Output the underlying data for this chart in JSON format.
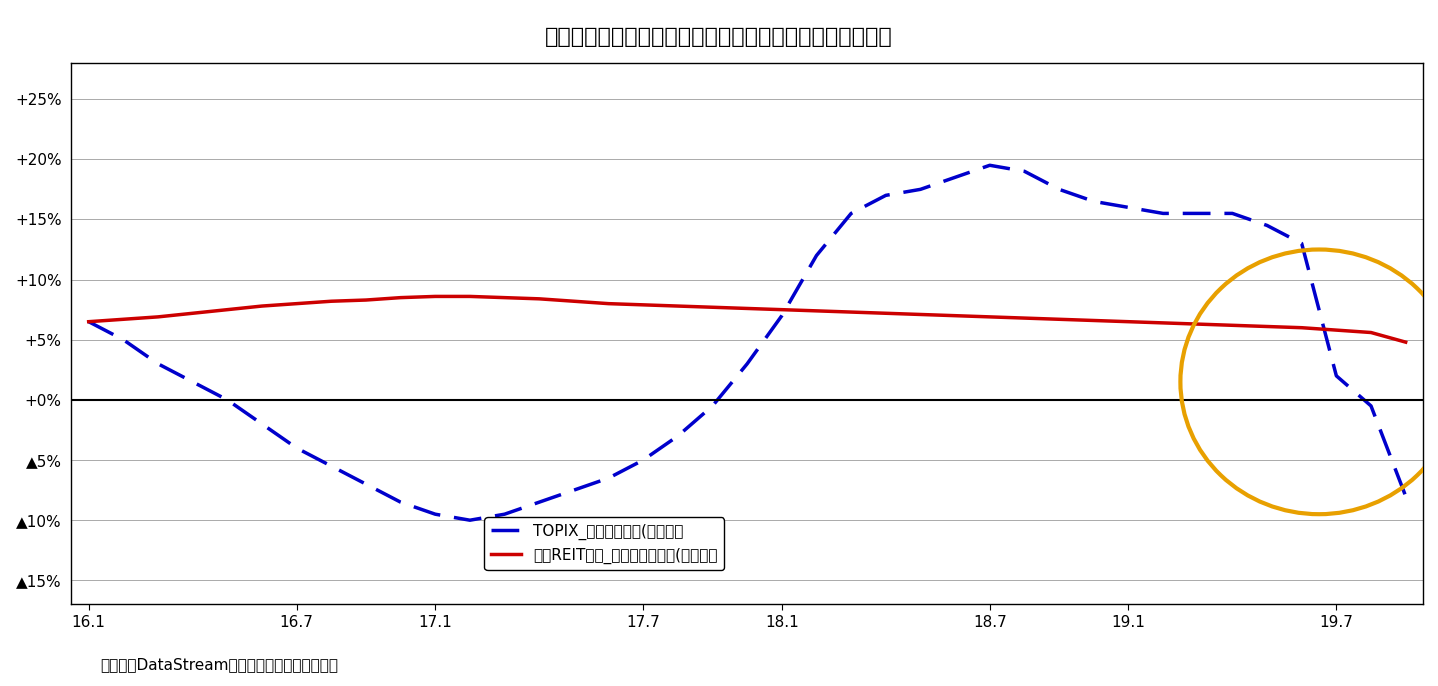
{
  "title": "図表２：株式市場とＪリート市場の業績（前年比伸び率）",
  "footnote": "（資料）DataStreamのデータなどをもとに作成",
  "ytick_vals": [
    0.25,
    0.2,
    0.15,
    0.1,
    0.05,
    0.0,
    -0.05,
    -0.1,
    -0.15
  ],
  "ytick_labels": [
    "+25%",
    "+20%",
    "+15%",
    "+10%",
    "+5%",
    "+0%",
    "▲5%",
    "▲10%",
    "▲15%"
  ],
  "ylim": [
    -0.17,
    0.28
  ],
  "xtick_positions": [
    0,
    6,
    10,
    16,
    20,
    26,
    30,
    36
  ],
  "xtick_labels": [
    "16.1",
    "16.7",
    "17.1",
    "17.7",
    "18.1",
    "18.7",
    "19.1",
    "19.7"
  ],
  "xlim": [
    -0.5,
    38.5
  ],
  "background_color": "#ffffff",
  "grid_color": "#aaaaaa",
  "zero_line_color": "#000000",
  "topix_color": "#0000cc",
  "reit_color": "#cc0000",
  "legend_topix": "TOPIX_予想１株利益(前年比）",
  "legend_reit": "東証REIT指数_予想１株分配金(前年比）",
  "ellipse_color": "#e8a000",
  "topix_y": [
    0.065,
    0.05,
    0.03,
    0.015,
    0.0,
    -0.02,
    -0.04,
    -0.055,
    -0.07,
    -0.085,
    -0.095,
    -0.1,
    -0.095,
    -0.085,
    -0.075,
    -0.065,
    -0.05,
    -0.03,
    -0.005,
    0.03,
    0.07,
    0.12,
    0.155,
    0.17,
    0.175,
    0.185,
    0.195,
    0.19,
    0.175,
    0.165,
    0.16,
    0.155,
    0.155,
    0.155,
    0.145,
    0.13,
    0.02,
    -0.005,
    -0.08
  ],
  "reit_y": [
    0.065,
    0.067,
    0.069,
    0.072,
    0.075,
    0.078,
    0.08,
    0.082,
    0.083,
    0.085,
    0.086,
    0.086,
    0.085,
    0.084,
    0.082,
    0.08,
    0.079,
    0.078,
    0.077,
    0.076,
    0.075,
    0.074,
    0.073,
    0.072,
    0.071,
    0.07,
    0.069,
    0.068,
    0.067,
    0.066,
    0.065,
    0.064,
    0.063,
    0.062,
    0.061,
    0.06,
    0.058,
    0.056,
    0.048
  ]
}
